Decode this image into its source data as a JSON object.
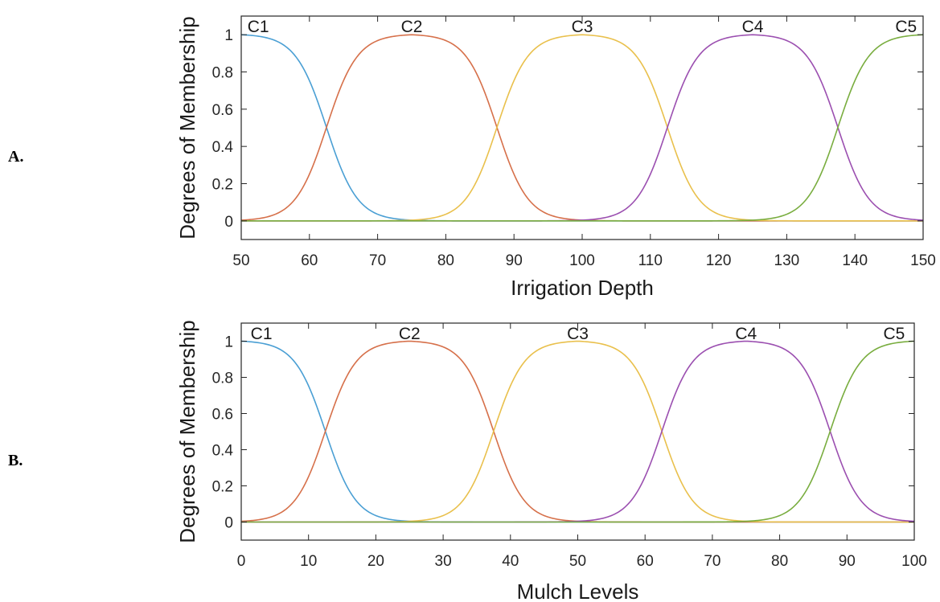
{
  "panels": [
    {
      "label": "A."
    },
    {
      "label": "B."
    }
  ],
  "chart_data": [
    {
      "type": "line",
      "panel": "A.",
      "xlabel": "Irrigation Depth",
      "ylabel": "Degrees of Membership",
      "xlim": [
        50,
        150
      ],
      "ylim": [
        -0.1,
        1.1
      ],
      "xticks": [
        50,
        60,
        70,
        80,
        90,
        100,
        110,
        120,
        130,
        140,
        150
      ],
      "yticks": [
        0,
        0.2,
        0.4,
        0.6,
        0.8,
        1
      ],
      "grid": false,
      "series": [
        {
          "name": "C1",
          "color": "#4a9fd4",
          "peak_start": 50,
          "peak_end": 50,
          "width": 12.5,
          "label_x": 52.5,
          "x": [
            50,
            55,
            60,
            62.5,
            65,
            70,
            75,
            80,
            90,
            100
          ],
          "y": [
            1.0,
            0.96,
            0.72,
            0.5,
            0.28,
            0.1,
            0.06,
            0.035,
            0.015,
            0.006
          ]
        },
        {
          "name": "C2",
          "color": "#d6704a",
          "peak_start": 75,
          "peak_end": 75,
          "width": 12.5,
          "label_x": 75,
          "x": [
            50,
            62.5,
            70,
            75,
            80,
            87.5,
            100
          ],
          "y": [
            0.06,
            0.5,
            0.96,
            1.0,
            0.96,
            0.5,
            0.06
          ]
        },
        {
          "name": "C3",
          "color": "#e9c04c",
          "peak_start": 100,
          "peak_end": 100,
          "width": 12.5,
          "label_x": 100,
          "x": [
            75,
            87.5,
            95,
            100,
            105,
            112.5,
            125
          ],
          "y": [
            0.06,
            0.5,
            0.96,
            1.0,
            0.96,
            0.5,
            0.06
          ]
        },
        {
          "name": "C4",
          "color": "#9b4fb0",
          "peak_start": 125,
          "peak_end": 125,
          "width": 12.5,
          "label_x": 125,
          "x": [
            100,
            112.5,
            120,
            125,
            130,
            137.5,
            150
          ],
          "y": [
            0.06,
            0.5,
            0.96,
            1.0,
            0.96,
            0.5,
            0.06
          ]
        },
        {
          "name": "C5",
          "color": "#79ad3f",
          "peak_start": 150,
          "peak_end": 150,
          "width": 12.5,
          "label_x": 147.5,
          "x": [
            125,
            137.5,
            145,
            150
          ],
          "y": [
            0.06,
            0.5,
            0.96,
            1.0
          ]
        }
      ]
    },
    {
      "type": "line",
      "panel": "B.",
      "xlabel": "Mulch Levels",
      "ylabel": "Degrees of Membership",
      "xlim": [
        0,
        100
      ],
      "ylim": [
        -0.1,
        1.1
      ],
      "xticks": [
        0,
        10,
        20,
        30,
        40,
        50,
        60,
        70,
        80,
        90,
        100
      ],
      "yticks": [
        0,
        0.2,
        0.4,
        0.6,
        0.8,
        1
      ],
      "grid": false,
      "series": [
        {
          "name": "C1",
          "color": "#4a9fd4",
          "peak_start": 0,
          "peak_end": 0,
          "width": 12.5,
          "label_x": 3,
          "x": [
            0,
            5,
            10,
            12.5,
            15,
            20,
            25,
            30,
            40,
            50
          ],
          "y": [
            1.0,
            0.96,
            0.72,
            0.5,
            0.28,
            0.1,
            0.06,
            0.035,
            0.015,
            0.006
          ]
        },
        {
          "name": "C2",
          "color": "#d6704a",
          "peak_start": 25,
          "peak_end": 25,
          "width": 12.5,
          "label_x": 25,
          "x": [
            0,
            12.5,
            20,
            25,
            30,
            37.5,
            50
          ],
          "y": [
            0.06,
            0.5,
            0.96,
            1.0,
            0.96,
            0.5,
            0.06
          ]
        },
        {
          "name": "C3",
          "color": "#e9c04c",
          "peak_start": 50,
          "peak_end": 50,
          "width": 12.5,
          "label_x": 50,
          "x": [
            25,
            37.5,
            45,
            50,
            55,
            62.5,
            75
          ],
          "y": [
            0.06,
            0.5,
            0.96,
            1.0,
            0.96,
            0.5,
            0.06
          ]
        },
        {
          "name": "C4",
          "color": "#9b4fb0",
          "peak_start": 75,
          "peak_end": 75,
          "width": 12.5,
          "label_x": 75,
          "x": [
            50,
            62.5,
            70,
            75,
            80,
            87.5,
            100
          ],
          "y": [
            0.06,
            0.5,
            0.96,
            1.0,
            0.96,
            0.5,
            0.06
          ]
        },
        {
          "name": "C5",
          "color": "#79ad3f",
          "peak_start": 100,
          "peak_end": 100,
          "width": 12.5,
          "label_x": 97,
          "x": [
            75,
            87.5,
            95,
            100
          ],
          "y": [
            0.06,
            0.5,
            0.96,
            1.0
          ]
        }
      ]
    }
  ]
}
